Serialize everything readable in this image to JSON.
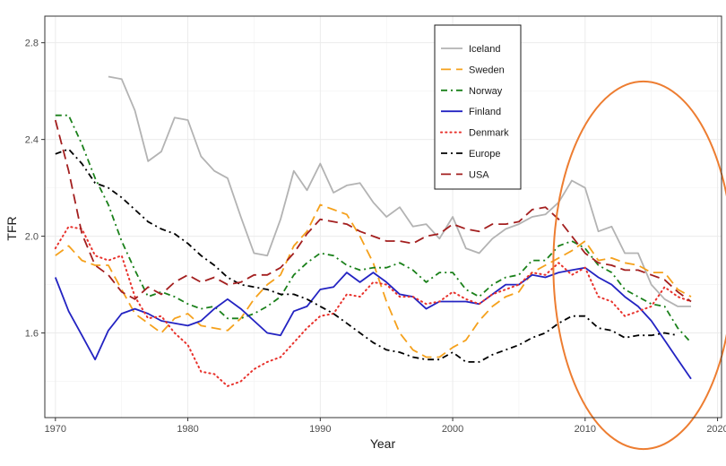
{
  "chart_data": {
    "type": "line",
    "title": "",
    "xlabel": "Year",
    "ylabel": "TFR",
    "xlim": [
      1969.2,
      2020.3
    ],
    "ylim": [
      1.25,
      2.91
    ],
    "x_ticks": [
      1970,
      1980,
      1990,
      2000,
      2010,
      2020
    ],
    "y_ticks": [
      1.6,
      2.0,
      2.4,
      2.8
    ],
    "x_tick_labels": [
      "1970",
      "1980",
      "1990",
      "2000",
      "2010",
      "2020"
    ],
    "y_tick_labels": [
      "1.6",
      "2.0",
      "2.4",
      "2.8"
    ],
    "grid": true,
    "legend_position": "top-center",
    "series": [
      {
        "name": "Iceland",
        "color": "#b3b3b3",
        "dash": "solid",
        "x": [
          1974,
          1975,
          1976,
          1977,
          1978,
          1979,
          1980,
          1981,
          1982,
          1983,
          1984,
          1985,
          1986,
          1987,
          1988,
          1989,
          1990,
          1991,
          1992,
          1993,
          1994,
          1995,
          1996,
          1997,
          1998,
          1999,
          2000,
          2001,
          2002,
          2003,
          2004,
          2005,
          2006,
          2007,
          2008,
          2009,
          2010,
          2011,
          2012,
          2013,
          2014,
          2015,
          2016,
          2017,
          2018
        ],
        "values": [
          2.66,
          2.65,
          2.52,
          2.31,
          2.35,
          2.49,
          2.48,
          2.33,
          2.27,
          2.24,
          2.08,
          1.93,
          1.92,
          2.07,
          2.27,
          2.19,
          2.3,
          2.18,
          2.21,
          2.22,
          2.14,
          2.08,
          2.12,
          2.04,
          2.05,
          1.99,
          2.08,
          1.95,
          1.93,
          1.99,
          2.03,
          2.05,
          2.08,
          2.09,
          2.14,
          2.23,
          2.2,
          2.02,
          2.04,
          1.93,
          1.93,
          1.8,
          1.74,
          1.71,
          1.71
        ]
      },
      {
        "name": "Sweden",
        "color": "#f5a11c",
        "dash": "longdash",
        "x": [
          1970,
          1971,
          1972,
          1973,
          1974,
          1975,
          1976,
          1977,
          1978,
          1979,
          1980,
          1981,
          1982,
          1983,
          1984,
          1985,
          1986,
          1987,
          1988,
          1989,
          1990,
          1991,
          1992,
          1993,
          1994,
          1995,
          1996,
          1997,
          1998,
          1999,
          2000,
          2001,
          2002,
          2003,
          2004,
          2005,
          2006,
          2007,
          2008,
          2009,
          2010,
          2011,
          2012,
          2013,
          2014,
          2015,
          2016,
          2017,
          2018
        ],
        "values": [
          1.92,
          1.96,
          1.9,
          1.88,
          1.88,
          1.78,
          1.68,
          1.64,
          1.6,
          1.66,
          1.68,
          1.63,
          1.62,
          1.61,
          1.66,
          1.74,
          1.8,
          1.84,
          1.96,
          2.02,
          2.13,
          2.11,
          2.09,
          2.0,
          1.89,
          1.73,
          1.6,
          1.53,
          1.5,
          1.5,
          1.54,
          1.57,
          1.65,
          1.71,
          1.75,
          1.77,
          1.85,
          1.88,
          1.91,
          1.94,
          1.98,
          1.9,
          1.91,
          1.89,
          1.88,
          1.85,
          1.85,
          1.78,
          1.75
        ]
      },
      {
        "name": "Norway",
        "color": "#1a801a",
        "dash": "dashdot",
        "x": [
          1970,
          1971,
          1972,
          1973,
          1974,
          1975,
          1976,
          1977,
          1978,
          1979,
          1980,
          1981,
          1982,
          1983,
          1984,
          1985,
          1986,
          1987,
          1988,
          1989,
          1990,
          1991,
          1992,
          1993,
          1994,
          1995,
          1996,
          1997,
          1998,
          1999,
          2000,
          2001,
          2002,
          2003,
          2004,
          2005,
          2006,
          2007,
          2008,
          2009,
          2010,
          2011,
          2012,
          2013,
          2014,
          2015,
          2016,
          2017,
          2018
        ],
        "values": [
          2.5,
          2.5,
          2.38,
          2.24,
          2.13,
          1.98,
          1.86,
          1.75,
          1.77,
          1.75,
          1.72,
          1.7,
          1.71,
          1.66,
          1.66,
          1.68,
          1.71,
          1.75,
          1.84,
          1.89,
          1.93,
          1.92,
          1.88,
          1.86,
          1.87,
          1.87,
          1.89,
          1.86,
          1.81,
          1.85,
          1.85,
          1.78,
          1.75,
          1.8,
          1.83,
          1.84,
          1.9,
          1.9,
          1.96,
          1.98,
          1.95,
          1.88,
          1.85,
          1.78,
          1.75,
          1.72,
          1.71,
          1.62,
          1.56
        ]
      },
      {
        "name": "Finland",
        "color": "#2323c2",
        "dash": "solid",
        "x": [
          1970,
          1971,
          1972,
          1973,
          1974,
          1975,
          1976,
          1977,
          1978,
          1979,
          1980,
          1981,
          1982,
          1983,
          1984,
          1985,
          1986,
          1987,
          1988,
          1989,
          1990,
          1991,
          1992,
          1993,
          1994,
          1995,
          1996,
          1997,
          1998,
          1999,
          2000,
          2001,
          2002,
          2003,
          2004,
          2005,
          2006,
          2007,
          2008,
          2009,
          2010,
          2011,
          2012,
          2013,
          2014,
          2015,
          2016,
          2017,
          2018
        ],
        "values": [
          1.83,
          1.69,
          1.59,
          1.49,
          1.61,
          1.68,
          1.7,
          1.68,
          1.65,
          1.64,
          1.63,
          1.65,
          1.7,
          1.74,
          1.7,
          1.65,
          1.6,
          1.59,
          1.69,
          1.71,
          1.78,
          1.79,
          1.85,
          1.81,
          1.85,
          1.81,
          1.76,
          1.75,
          1.7,
          1.73,
          1.73,
          1.73,
          1.72,
          1.76,
          1.8,
          1.8,
          1.84,
          1.83,
          1.85,
          1.86,
          1.87,
          1.83,
          1.8,
          1.75,
          1.71,
          1.65,
          1.57,
          1.49,
          1.41
        ]
      },
      {
        "name": "Denmark",
        "color": "#e8322c",
        "dash": "dotted",
        "x": [
          1970,
          1971,
          1972,
          1973,
          1974,
          1975,
          1976,
          1977,
          1978,
          1979,
          1980,
          1981,
          1982,
          1983,
          1984,
          1985,
          1986,
          1987,
          1988,
          1989,
          1990,
          1991,
          1992,
          1993,
          1994,
          1995,
          1996,
          1997,
          1998,
          1999,
          2000,
          2001,
          2002,
          2003,
          2004,
          2005,
          2006,
          2007,
          2008,
          2009,
          2010,
          2011,
          2012,
          2013,
          2014,
          2015,
          2016,
          2017,
          2018
        ],
        "values": [
          1.95,
          2.04,
          2.03,
          1.92,
          1.9,
          1.92,
          1.75,
          1.66,
          1.67,
          1.6,
          1.55,
          1.44,
          1.43,
          1.38,
          1.4,
          1.45,
          1.48,
          1.5,
          1.56,
          1.62,
          1.67,
          1.68,
          1.76,
          1.75,
          1.81,
          1.8,
          1.75,
          1.75,
          1.72,
          1.73,
          1.77,
          1.74,
          1.72,
          1.76,
          1.78,
          1.8,
          1.85,
          1.84,
          1.89,
          1.84,
          1.87,
          1.75,
          1.73,
          1.67,
          1.69,
          1.71,
          1.79,
          1.75,
          1.73
        ]
      },
      {
        "name": "Europe",
        "color": "#000000",
        "dash": "dashdot",
        "x": [
          1970,
          1971,
          1972,
          1973,
          1974,
          1975,
          1976,
          1977,
          1978,
          1979,
          1980,
          1981,
          1982,
          1983,
          1984,
          1985,
          1986,
          1987,
          1988,
          1989,
          1990,
          1991,
          1992,
          1993,
          1994,
          1995,
          1996,
          1997,
          1998,
          1999,
          2000,
          2001,
          2002,
          2003,
          2004,
          2005,
          2006,
          2007,
          2008,
          2009,
          2010,
          2011,
          2012,
          2013,
          2014,
          2015,
          2016,
          2017,
          2018
        ],
        "values": [
          2.34,
          2.36,
          2.3,
          2.22,
          2.2,
          2.16,
          2.11,
          2.06,
          2.03,
          2.01,
          1.97,
          1.92,
          1.88,
          1.83,
          1.8,
          1.79,
          1.78,
          1.76,
          1.76,
          1.74,
          1.71,
          1.68,
          1.64,
          1.6,
          1.56,
          1.53,
          1.52,
          1.5,
          1.49,
          1.49,
          1.52,
          1.48,
          1.48,
          1.51,
          1.53,
          1.55,
          1.58,
          1.6,
          1.64,
          1.67,
          1.67,
          1.62,
          1.61,
          1.58,
          1.59,
          1.59,
          1.6,
          1.59,
          null
        ]
      },
      {
        "name": "USA",
        "color": "#a31f1f",
        "dash": "longdash",
        "x": [
          1970,
          1971,
          1972,
          1973,
          1974,
          1975,
          1976,
          1977,
          1978,
          1979,
          1980,
          1981,
          1982,
          1983,
          1984,
          1985,
          1986,
          1987,
          1988,
          1989,
          1990,
          1991,
          1992,
          1993,
          1994,
          1995,
          1996,
          1997,
          1998,
          1999,
          2000,
          2001,
          2002,
          2003,
          2004,
          2005,
          2006,
          2007,
          2008,
          2009,
          2010,
          2011,
          2012,
          2013,
          2014,
          2015,
          2016,
          2017,
          2018
        ],
        "values": [
          2.48,
          2.27,
          2.01,
          1.88,
          1.84,
          1.77,
          1.74,
          1.79,
          1.76,
          1.81,
          1.84,
          1.81,
          1.83,
          1.8,
          1.81,
          1.84,
          1.84,
          1.87,
          1.93,
          2.01,
          2.07,
          2.06,
          2.05,
          2.02,
          2.0,
          1.98,
          1.98,
          1.97,
          2.0,
          2.01,
          2.05,
          2.03,
          2.02,
          2.05,
          2.05,
          2.06,
          2.11,
          2.12,
          2.07,
          2.0,
          1.93,
          1.89,
          1.88,
          1.86,
          1.86,
          1.84,
          1.82,
          1.77,
          1.73
        ]
      }
    ],
    "annotations": [
      {
        "type": "ellipse",
        "color": "#ed7d31",
        "center_year": 2014.4,
        "center_tfr": 1.88,
        "semi_axis_years": 6.8,
        "semi_axis_tfr": 0.76
      }
    ]
  }
}
